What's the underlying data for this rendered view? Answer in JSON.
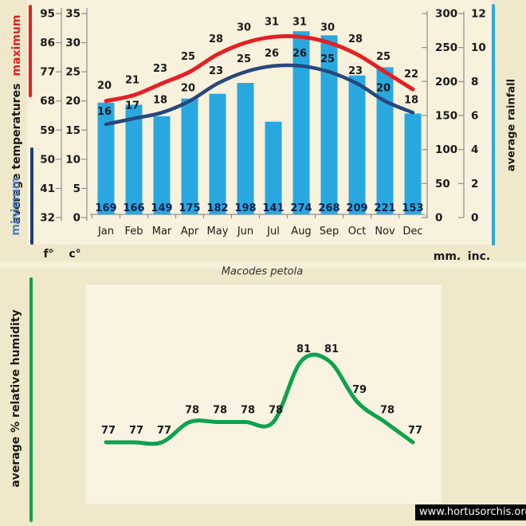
{
  "watermark": "www.hortusorchis.org",
  "colors": {
    "outer_bg": "#efe8cb",
    "top_panel_bg": "#f8f1dc",
    "bottom_panel_bg": "#faf3e1",
    "bar_blue": "#29a8e0",
    "max_line_red": "#e32025",
    "min_line_navy": "#27477e",
    "minimum_text_blue": "#4e80be",
    "humidity_green": "#0ea24e",
    "axis_gray": "#8f8f8f",
    "text_dark": "#1a1a1a",
    "bar_value_navy": "#13214e",
    "watermark_bg": "#000000",
    "watermark_fg": "#ffffff"
  },
  "chart_data": [
    {
      "type": "bar",
      "title": "Macodes petola",
      "categories": [
        "Jan",
        "Feb",
        "Mar",
        "Apr",
        "May",
        "Jun",
        "Jul",
        "Aug",
        "Sep",
        "Oct",
        "Nov",
        "Dec"
      ],
      "series": [
        {
          "name": "maximum",
          "type": "line",
          "unit": "c",
          "values": [
            20,
            21,
            23,
            25,
            28,
            30,
            31,
            31,
            30,
            28,
            25,
            22
          ]
        },
        {
          "name": "minimum",
          "type": "line",
          "unit": "c",
          "values": [
            16,
            17,
            18,
            20,
            23,
            25,
            26,
            26,
            25,
            23,
            20,
            18
          ]
        },
        {
          "name": "average rainfall",
          "type": "bar",
          "unit": "mm",
          "values": [
            169,
            166,
            149,
            175,
            182,
            198,
            141,
            274,
            268,
            209,
            221,
            153
          ]
        }
      ],
      "axes": {
        "fahrenheit": {
          "unit": "f°",
          "ticks": [
            95,
            86,
            77,
            68,
            59,
            50,
            41,
            32
          ]
        },
        "celsius": {
          "unit": "c°",
          "ticks": [
            35,
            30,
            25,
            20,
            15,
            10,
            5,
            0
          ],
          "range": [
            0,
            35
          ]
        },
        "millimeters": {
          "unit": "mm.",
          "ticks": [
            300,
            250,
            200,
            150,
            100,
            50,
            0
          ],
          "range": [
            0,
            300
          ]
        },
        "inches": {
          "unit": "inc.",
          "ticks": [
            12,
            10,
            8,
            6,
            4,
            2,
            0
          ],
          "range": [
            0,
            12
          ]
        }
      },
      "legend": {
        "max": "maximum",
        "mid": "average temperatures",
        "min": "minimum",
        "rain": "average rainfall"
      },
      "grid": false,
      "legend_position": "left-and-right-rotated"
    },
    {
      "type": "line",
      "categories": [
        "Jan",
        "Feb",
        "Mar",
        "Apr",
        "May",
        "Jun",
        "Jul",
        "Aug",
        "Sep",
        "Oct",
        "Nov",
        "Dec"
      ],
      "series": [
        {
          "name": "average % relative humidity",
          "values": [
            77,
            77,
            77,
            78,
            78,
            78,
            78,
            81,
            81,
            79,
            78,
            77
          ]
        }
      ],
      "ylim": [
        75,
        83
      ],
      "grid": false
    }
  ]
}
